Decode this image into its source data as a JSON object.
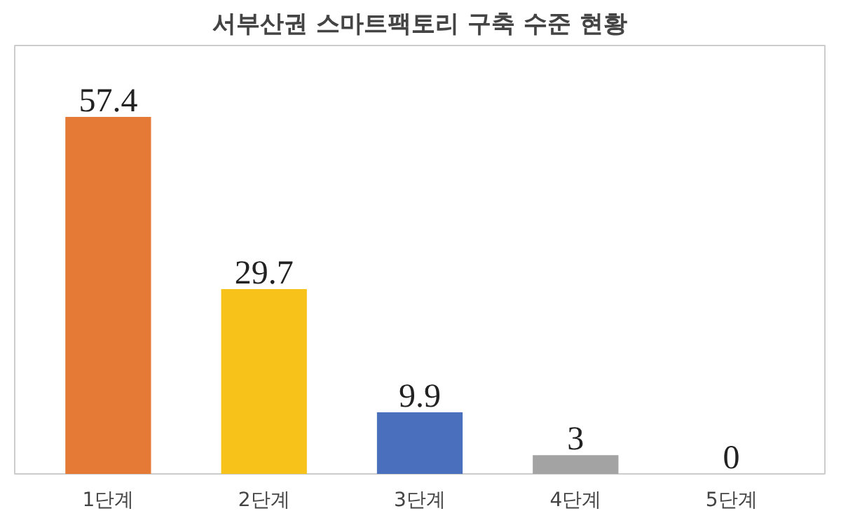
{
  "chart_data": {
    "type": "bar",
    "title": "서부산권 스마트팩토리 구축 수준 현황",
    "categories": [
      "1단계",
      "2단계",
      "3단계",
      "4단계",
      "5단계"
    ],
    "values": [
      57.4,
      29.7,
      9.9,
      3,
      0
    ],
    "colors": [
      "#e47a36",
      "#f7c21a",
      "#4a70bd",
      "#a3a3a3",
      "#a3a3a3"
    ],
    "data_labels": true,
    "grid": false
  }
}
